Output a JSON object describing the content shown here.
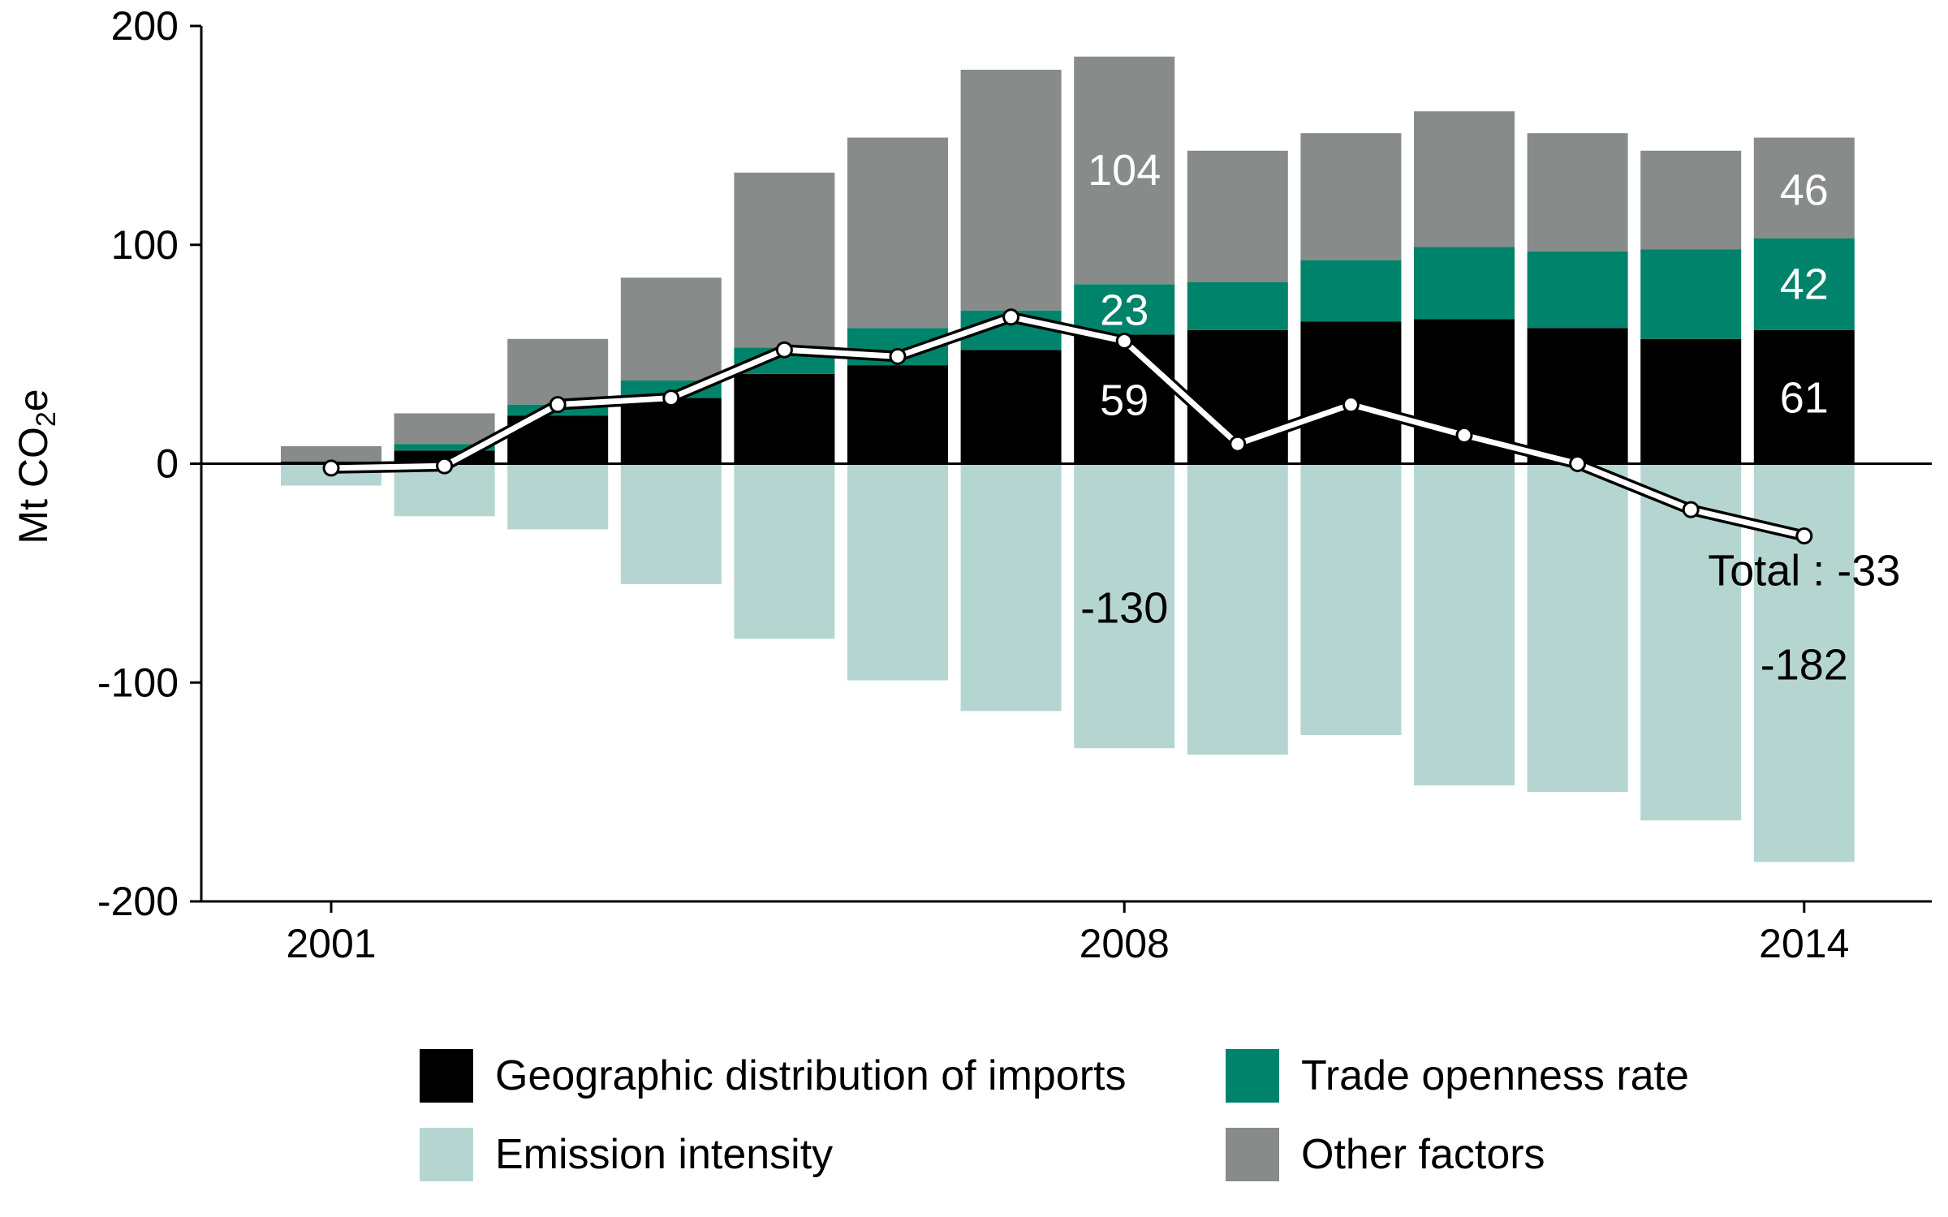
{
  "chart_data": {
    "type": "bar",
    "stacked": true,
    "ylabel": "Mt CO",
    "ylabel_sub": "2",
    "ylabel_tail": "e",
    "ylim": [
      -200,
      200
    ],
    "yticks": [
      200,
      100,
      0,
      -100,
      -200
    ],
    "xticks": [
      "2001",
      "2008",
      "2014"
    ],
    "categories": [
      "2001",
      "2002",
      "2003",
      "2004",
      "2005",
      "2006",
      "2007",
      "2008",
      "2009",
      "2010",
      "2011",
      "2012",
      "2013",
      "2014"
    ],
    "series": [
      {
        "name": "Geographic distribution of imports",
        "color": "#000000",
        "values": [
          1,
          6,
          22,
          30,
          41,
          45,
          52,
          59,
          61,
          65,
          66,
          62,
          57,
          61
        ]
      },
      {
        "name": "Trade openness rate",
        "color": "#00836b",
        "values": [
          0,
          3,
          5,
          8,
          12,
          17,
          18,
          23,
          22,
          28,
          33,
          35,
          41,
          42
        ]
      },
      {
        "name": "Other factors",
        "color": "#878b89",
        "values": [
          7,
          14,
          30,
          47,
          80,
          87,
          110,
          104,
          60,
          58,
          62,
          54,
          45,
          46
        ]
      },
      {
        "name": "Emission intensity",
        "color": "#b5d6d0",
        "values": [
          -10,
          -24,
          -30,
          -55,
          -80,
          -99,
          -113,
          -130,
          -133,
          -124,
          -147,
          -150,
          -163,
          -182
        ]
      }
    ],
    "total": {
      "values": [
        -2,
        -1,
        27,
        30,
        52,
        49,
        67,
        56,
        9,
        27,
        13,
        0,
        -21,
        -33
      ]
    },
    "annotations": [
      {
        "text": "104",
        "color": "#ffffff",
        "x": "2008",
        "y": 134
      },
      {
        "text": "23",
        "color": "#ffffff",
        "x": "2008",
        "y": 70
      },
      {
        "text": "59",
        "color": "#ffffff",
        "x": "2008",
        "y": 29
      },
      {
        "text": "-130",
        "color": "#000000",
        "x": "2008",
        "y": -66
      },
      {
        "text": "46",
        "color": "#ffffff",
        "x": "2014",
        "y": 125
      },
      {
        "text": "42",
        "color": "#ffffff",
        "x": "2014",
        "y": 82
      },
      {
        "text": "61",
        "color": "#ffffff",
        "x": "2014",
        "y": 30
      },
      {
        "text": "Total : -33",
        "color": "#000000",
        "x": "2014",
        "y": -49
      },
      {
        "text": "-182",
        "color": "#000000",
        "x": "2014",
        "y": -92
      }
    ],
    "legend": [
      {
        "label": "Geographic distribution of imports",
        "color": "#000000"
      },
      {
        "label": "Trade openness rate",
        "color": "#00836b"
      },
      {
        "label": "Emission intensity",
        "color": "#b5d6d0"
      },
      {
        "label": "Other factors",
        "color": "#878b89"
      }
    ],
    "legend_position": "bottom",
    "grid": false
  }
}
